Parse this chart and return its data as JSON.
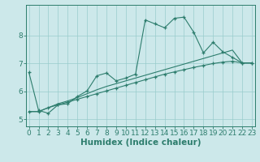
{
  "xlabel": "Humidex (Indice chaleur)",
  "x": [
    0,
    1,
    2,
    3,
    4,
    5,
    6,
    7,
    8,
    9,
    10,
    11,
    12,
    13,
    14,
    15,
    16,
    17,
    18,
    19,
    20,
    21,
    22,
    23
  ],
  "line1_y": [
    6.68,
    5.32,
    5.22,
    5.52,
    5.56,
    5.82,
    6.02,
    6.56,
    6.66,
    6.38,
    6.48,
    6.62,
    8.56,
    8.42,
    8.28,
    8.62,
    8.66,
    8.12,
    7.38,
    7.76,
    7.42,
    7.22,
    7.02,
    7.02
  ],
  "line2_y": [
    5.28,
    5.28,
    5.42,
    5.52,
    5.62,
    5.72,
    5.82,
    5.92,
    6.02,
    6.12,
    6.22,
    6.32,
    6.42,
    6.52,
    6.62,
    6.7,
    6.78,
    6.86,
    6.93,
    7.0,
    7.05,
    7.08,
    7.02,
    7.02
  ],
  "line3_y": [
    5.28,
    5.28,
    5.42,
    5.56,
    5.66,
    5.78,
    5.92,
    6.06,
    6.18,
    6.28,
    6.38,
    6.48,
    6.58,
    6.68,
    6.78,
    6.88,
    6.98,
    7.08,
    7.18,
    7.28,
    7.38,
    7.48,
    7.02,
    7.02
  ],
  "line_color": "#2d7d6d",
  "bg_color": "#cce8ea",
  "grid_color": "#99cccc",
  "ylim": [
    4.75,
    9.1
  ],
  "xlim": [
    -0.3,
    23.3
  ],
  "yticks": [
    5,
    6,
    7,
    8
  ],
  "xticks": [
    0,
    1,
    2,
    3,
    4,
    5,
    6,
    7,
    8,
    9,
    10,
    11,
    12,
    13,
    14,
    15,
    16,
    17,
    18,
    19,
    20,
    21,
    22,
    23
  ],
  "xlabel_fontsize": 7.5,
  "tick_fontsize": 6.5
}
